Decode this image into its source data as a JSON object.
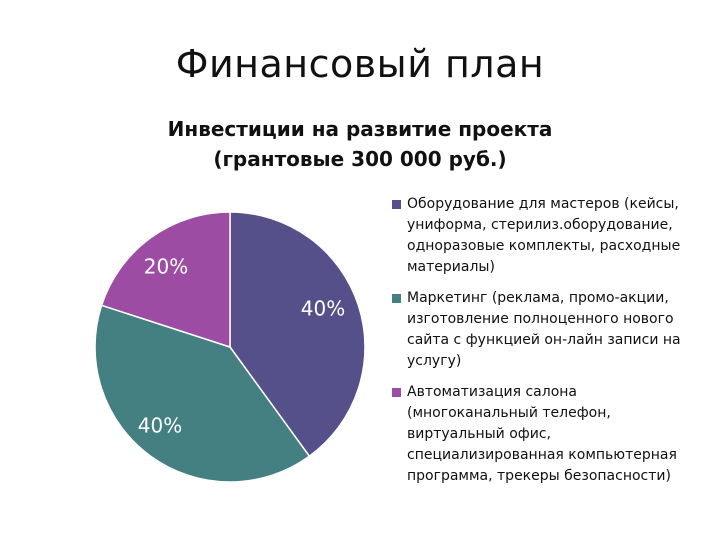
{
  "slide": {
    "title": "Финансовый план"
  },
  "chart_data": {
    "type": "pie",
    "title": "Инвестиции на развитие проекта",
    "subtitle": "(грантовые 300 000 руб.)",
    "legend_position": "right",
    "slices": [
      {
        "name": "Оборудование для мастеров (кейсы, униформа, стерилиз.оборудование, одноразовые комплекты, расходные материалы)",
        "value": 40,
        "label": "40%",
        "color": "#55508a"
      },
      {
        "name": "Маркетинг (реклама, промо-акции, изготовление полноценного нового сайта с функцией он-лайн записи на услугу)",
        "value": 40,
        "label": "40%",
        "color": "#448082"
      },
      {
        "name": "Автоматизация салона (многоканальный телефон, виртуальный офис, специализированная компьютерная программа, трекеры безопасности)",
        "value": 20,
        "label": "20%",
        "color": "#9c4da3"
      }
    ]
  }
}
